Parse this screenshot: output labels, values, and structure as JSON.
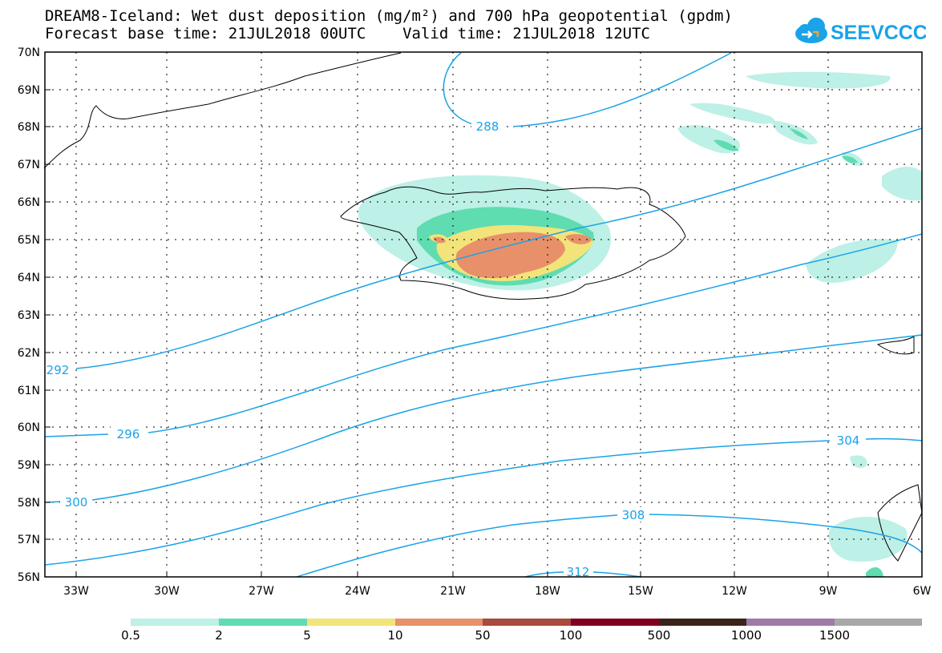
{
  "title": {
    "line1": "DREAM8-Iceland: Wet dust deposition (mg/m²) and 700 hPa geopotential (gpdm)",
    "line2": "Forecast base time: 21JUL2018 00UTC    Valid time: 21JUL2018 12UTC"
  },
  "logo": {
    "text": "SEEVCCC",
    "icon": "cloud-icon"
  },
  "axes": {
    "lat_labels": [
      "70N",
      "69N",
      "68N",
      "67N",
      "66N",
      "65N",
      "64N",
      "63N",
      "62N",
      "61N",
      "60N",
      "59N",
      "58N",
      "57N",
      "56N"
    ],
    "lon_labels": [
      "33W",
      "30W",
      "27W",
      "24W",
      "21W",
      "18W",
      "15W",
      "12W",
      "9W",
      "6W"
    ]
  },
  "contours": {
    "color": "#1aa3e8",
    "labels": [
      "288",
      "292",
      "296",
      "300",
      "304",
      "308",
      "312"
    ]
  },
  "legend": {
    "colors": [
      "#bdf0e6",
      "#5fdcb0",
      "#f2e47a",
      "#e8906a",
      "#a84a3c",
      "#800020",
      "#3a2418",
      "#9f7aa8",
      "#a8a8a8"
    ],
    "labels": [
      "0.5",
      "2",
      "5",
      "10",
      "50",
      "100",
      "500",
      "1000",
      "1500"
    ]
  }
}
